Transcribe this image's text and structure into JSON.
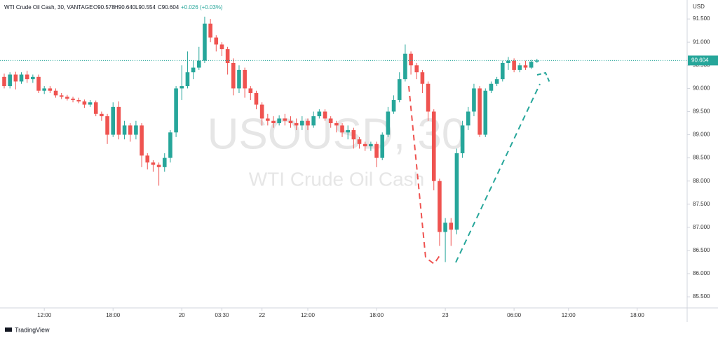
{
  "chart_data": {
    "type": "candlestick",
    "header": {
      "symbol": "WTI Crude Oil Cash, 30, VANTAGE",
      "ohlc": [
        "O90.578",
        "H90.640",
        "L90.554",
        "C90.604"
      ],
      "change": "+0.026 (+0.03%)"
    },
    "watermark": "USOUSD, 30",
    "watermark_subtitle": "WTI Crude Oil Cash",
    "y_axis_label": "USD",
    "brand": "TradingView",
    "up_color": "#26a69a",
    "down_color": "#ef5350",
    "last_price": 90.604,
    "categories": [
      null,
      null,
      null,
      null,
      null,
      null,
      null,
      null,
      null,
      null,
      null,
      null,
      null,
      null,
      null,
      null,
      null,
      null,
      null,
      null,
      null,
      null,
      null,
      null,
      null,
      null,
      null,
      null,
      null,
      null,
      null,
      null,
      null,
      null,
      null,
      null,
      null,
      null,
      null,
      null,
      null,
      null,
      null,
      null,
      null,
      null,
      null,
      null,
      null,
      null,
      null,
      null,
      null,
      null,
      null,
      null,
      null,
      null,
      null,
      null,
      null,
      null,
      null,
      null,
      null,
      null,
      null,
      null,
      null,
      null,
      null,
      null,
      null,
      null,
      null,
      null,
      null,
      null,
      null,
      null,
      null,
      null,
      null,
      null,
      null,
      null,
      null,
      null,
      null,
      null,
      null,
      null,
      null,
      null
    ],
    "open": [
      90.25,
      90.05,
      90.3,
      90.15,
      90.3,
      90.2,
      90.25,
      89.95,
      90.0,
      89.95,
      89.85,
      89.82,
      89.78,
      89.75,
      89.72,
      89.65,
      89.7,
      89.45,
      89.4,
      89.0,
      89.6,
      89.0,
      89.2,
      89.0,
      89.2,
      88.55,
      88.4,
      88.35,
      88.3,
      88.5,
      89.05,
      90.0,
      90.05,
      90.35,
      90.45,
      90.6,
      91.4,
      91.1,
      90.95,
      90.85,
      90.55,
      90.0,
      90.4,
      90.0,
      89.9,
      89.65,
      89.35,
      89.3,
      89.25,
      89.35,
      89.3,
      89.25,
      89.2,
      89.3,
      89.2,
      89.4,
      89.5,
      89.35,
      89.25,
      89.2,
      89.05,
      89.1,
      88.9,
      88.8,
      88.75,
      88.8,
      88.5,
      89.0,
      89.5,
      89.75,
      90.2,
      90.75,
      90.5,
      90.35,
      90.1,
      89.5,
      88.0,
      86.9,
      87.1,
      86.95,
      88.6,
      89.2,
      89.5,
      90.0,
      89.0,
      89.95,
      90.1,
      90.2,
      90.55,
      90.6,
      90.4,
      90.5,
      90.45,
      90.578
    ],
    "high": [
      90.32,
      90.35,
      90.36,
      90.35,
      90.38,
      90.3,
      90.3,
      90.05,
      90.05,
      90.0,
      89.9,
      89.86,
      89.82,
      89.8,
      89.76,
      89.75,
      89.74,
      89.5,
      89.45,
      89.7,
      89.72,
      89.3,
      89.25,
      89.3,
      89.25,
      88.6,
      88.45,
      88.4,
      88.6,
      89.1,
      90.05,
      90.5,
      90.8,
      90.6,
      90.9,
      91.55,
      91.5,
      91.15,
      91.0,
      90.9,
      90.65,
      90.5,
      90.45,
      90.05,
      89.95,
      89.7,
      89.45,
      89.4,
      89.42,
      89.45,
      89.4,
      89.35,
      89.4,
      89.35,
      89.5,
      89.55,
      89.55,
      89.4,
      89.3,
      89.25,
      89.2,
      89.15,
      88.95,
      88.85,
      88.85,
      88.85,
      89.05,
      89.6,
      89.85,
      90.35,
      90.95,
      90.8,
      90.55,
      90.4,
      90.15,
      89.55,
      88.05,
      87.2,
      87.2,
      88.7,
      89.3,
      89.6,
      90.1,
      90.05,
      90.0,
      90.15,
      90.25,
      90.6,
      90.68,
      90.65,
      90.55,
      90.6,
      90.62,
      90.64
    ],
    "low": [
      90.0,
      90.0,
      89.98,
      90.1,
      90.12,
      90.12,
      89.9,
      89.88,
      89.9,
      89.8,
      89.77,
      89.74,
      89.7,
      89.68,
      89.58,
      89.6,
      89.4,
      89.3,
      88.8,
      88.95,
      88.9,
      88.9,
      88.85,
      88.9,
      88.3,
      88.25,
      88.2,
      87.9,
      88.2,
      88.4,
      88.95,
      89.75,
      90.0,
      90.2,
      90.4,
      90.55,
      91.0,
      90.8,
      90.7,
      90.3,
      89.85,
      89.9,
      89.8,
      89.75,
      89.55,
      89.2,
      89.2,
      89.15,
      89.2,
      89.2,
      89.15,
      89.1,
      89.1,
      89.1,
      89.15,
      89.35,
      89.3,
      89.15,
      89.05,
      88.95,
      88.9,
      88.7,
      88.7,
      88.65,
      88.65,
      88.3,
      88.45,
      88.95,
      89.45,
      89.7,
      90.15,
      90.3,
      90.2,
      89.9,
      89.3,
      87.8,
      86.6,
      86.25,
      86.6,
      86.85,
      88.5,
      89.1,
      89.4,
      88.95,
      88.95,
      89.9,
      90.05,
      90.15,
      90.4,
      90.35,
      90.35,
      90.4,
      90.42,
      90.554
    ],
    "close": [
      90.05,
      90.3,
      90.15,
      90.3,
      90.2,
      90.25,
      89.95,
      90.0,
      89.95,
      89.85,
      89.82,
      89.78,
      89.75,
      89.72,
      89.65,
      89.7,
      89.45,
      89.4,
      89.0,
      89.6,
      89.0,
      89.2,
      89.0,
      89.2,
      88.55,
      88.4,
      88.35,
      88.3,
      88.5,
      89.05,
      90.0,
      90.05,
      90.35,
      90.45,
      90.6,
      91.4,
      91.1,
      90.95,
      90.85,
      90.55,
      90.0,
      90.4,
      90.0,
      89.9,
      89.65,
      89.35,
      89.3,
      89.25,
      89.35,
      89.3,
      89.25,
      89.2,
      89.3,
      89.2,
      89.4,
      89.5,
      89.35,
      89.25,
      89.2,
      89.05,
      89.1,
      88.9,
      88.8,
      88.75,
      88.8,
      88.5,
      89.0,
      89.5,
      89.75,
      90.2,
      90.75,
      90.5,
      90.35,
      90.1,
      89.5,
      88.0,
      86.9,
      87.1,
      86.95,
      88.6,
      89.2,
      89.5,
      90.0,
      89.0,
      89.95,
      90.1,
      90.2,
      90.55,
      90.6,
      90.4,
      90.5,
      90.45,
      90.578,
      90.604
    ],
    "ylim": [
      85.26,
      91.91
    ],
    "yticks": [
      {
        "value": 85.5,
        "label": "85.500"
      },
      {
        "value": 86,
        "label": "86.000"
      },
      {
        "value": 86.5,
        "label": "86.500"
      },
      {
        "value": 87,
        "label": "87.000"
      },
      {
        "value": 87.5,
        "label": "87.500"
      },
      {
        "value": 88,
        "label": "88.000"
      },
      {
        "value": 88.5,
        "label": "88.500"
      },
      {
        "value": 89,
        "label": "89.000"
      },
      {
        "value": 89.5,
        "label": "89.500"
      },
      {
        "value": 90,
        "label": "90.000"
      },
      {
        "value": 90.5,
        "label": "90.500"
      },
      {
        "value": 91,
        "label": "91.000"
      },
      {
        "value": 91.5,
        "label": "91.500"
      }
    ],
    "xticks": [
      {
        "value": 7,
        "label": "12:00"
      },
      {
        "value": 19,
        "label": "18:00"
      },
      {
        "value": 31,
        "label": "20"
      },
      {
        "value": 38,
        "label": "03:30"
      },
      {
        "value": 45,
        "label": "22"
      },
      {
        "value": 53,
        "label": "12:00"
      },
      {
        "value": 65,
        "label": "18:00"
      },
      {
        "value": 77,
        "label": "23"
      },
      {
        "value": 89,
        "label": "06:00"
      },
      {
        "value": 98.5,
        "label": "12:00"
      },
      {
        "value": 110.5,
        "label": "18:00"
      }
    ],
    "grid": false
  }
}
